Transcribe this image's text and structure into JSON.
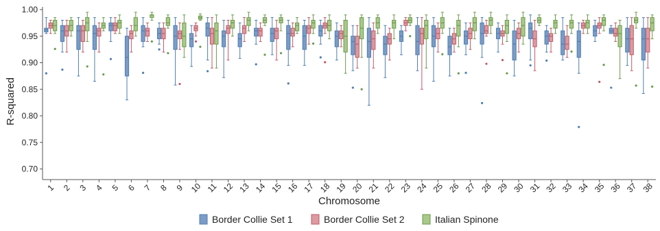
{
  "chart_data": {
    "type": "box",
    "xlabel": "Chromosome",
    "ylabel": "R-squared",
    "ylim": [
      0.68,
      1.0
    ],
    "yticks": [
      "0.70",
      "0.75",
      "0.80",
      "0.85",
      "0.90",
      "0.95",
      "1.00"
    ],
    "categories": [
      "1",
      "2",
      "3",
      "4",
      "5",
      "6",
      "7",
      "8",
      "9",
      "10",
      "11",
      "12",
      "13",
      "14",
      "15",
      "16",
      "17",
      "18",
      "19",
      "20",
      "21",
      "22",
      "23",
      "24",
      "25",
      "26",
      "27",
      "28",
      "29",
      "30",
      "31",
      "32",
      "33",
      "34",
      "35",
      "36",
      "37",
      "38"
    ],
    "legend_position": "bottom",
    "series": [
      {
        "name": "Border Collie Set 1",
        "color": "#4f7eb0",
        "fill": "#7a9cc6",
        "boxes": [
          [
            0.955,
            0.958,
            0.962,
            0.965,
            0.985,
            [
              0.88
            ]
          ],
          [
            0.92,
            0.94,
            0.96,
            0.97,
            0.98,
            [
              0.887
            ]
          ],
          [
            0.875,
            0.925,
            0.96,
            0.97,
            0.985,
            []
          ],
          [
            0.865,
            0.925,
            0.955,
            0.97,
            0.985,
            []
          ],
          [
            0.94,
            0.96,
            0.97,
            0.975,
            0.985,
            [
              0.907
            ]
          ],
          [
            0.83,
            0.875,
            0.91,
            0.95,
            0.965,
            []
          ],
          [
            0.93,
            0.94,
            0.96,
            0.97,
            0.985,
            [
              0.881
            ]
          ],
          [
            0.935,
            0.945,
            0.955,
            0.965,
            0.975,
            [
              0.925
            ]
          ],
          [
            0.858,
            0.925,
            0.95,
            0.97,
            0.985,
            []
          ],
          [
            0.893,
            0.93,
            0.945,
            0.955,
            0.97,
            []
          ],
          [
            0.905,
            0.95,
            0.965,
            0.975,
            0.985,
            [
              0.884
            ]
          ],
          [
            0.872,
            0.93,
            0.95,
            0.96,
            0.98,
            []
          ],
          [
            0.908,
            0.93,
            0.945,
            0.955,
            0.975,
            []
          ],
          [
            0.935,
            0.95,
            0.96,
            0.965,
            0.98,
            [
              0.897
            ]
          ],
          [
            0.915,
            0.94,
            0.955,
            0.965,
            0.985,
            []
          ],
          [
            0.895,
            0.925,
            0.955,
            0.97,
            0.98,
            [
              0.861
            ]
          ],
          [
            0.895,
            0.925,
            0.95,
            0.97,
            0.98,
            []
          ],
          [
            0.935,
            0.95,
            0.96,
            0.97,
            0.98,
            [
              0.91
            ]
          ],
          [
            0.905,
            0.93,
            0.95,
            0.96,
            0.975,
            []
          ],
          [
            0.885,
            0.915,
            0.94,
            0.95,
            0.97,
            [
              0.853
            ]
          ],
          [
            0.82,
            0.91,
            0.94,
            0.965,
            0.985,
            []
          ],
          [
            0.872,
            0.915,
            0.935,
            0.95,
            0.97,
            []
          ],
          [
            0.915,
            0.94,
            0.95,
            0.96,
            0.97,
            []
          ],
          [
            0.885,
            0.915,
            0.94,
            0.97,
            0.985,
            []
          ],
          [
            0.865,
            0.93,
            0.95,
            0.97,
            0.985,
            []
          ],
          [
            0.875,
            0.915,
            0.93,
            0.95,
            0.965,
            []
          ],
          [
            0.915,
            0.935,
            0.95,
            0.96,
            0.975,
            [
              0.881
            ]
          ],
          [
            0.91,
            0.935,
            0.955,
            0.975,
            0.985,
            [
              0.824
            ]
          ],
          [
            0.92,
            0.945,
            0.955,
            0.965,
            0.975,
            []
          ],
          [
            0.875,
            0.905,
            0.935,
            0.96,
            0.98,
            []
          ],
          [
            0.905,
            0.945,
            0.965,
            0.975,
            0.99,
            [
              0.895
            ]
          ],
          [
            0.92,
            0.935,
            0.95,
            0.96,
            0.97,
            [
              0.904
            ]
          ],
          [
            0.905,
            0.915,
            0.935,
            0.96,
            0.985,
            []
          ],
          [
            0.88,
            0.91,
            0.94,
            0.96,
            0.975,
            [
              0.779
            ]
          ],
          [
            0.94,
            0.95,
            0.96,
            0.97,
            0.98,
            []
          ],
          [
            0.955,
            0.955,
            0.96,
            0.965,
            0.97,
            [
              0.853
            ]
          ],
          [
            0.895,
            0.92,
            0.945,
            0.965,
            0.985,
            []
          ],
          [
            0.842,
            0.905,
            0.945,
            0.965,
            0.985,
            []
          ]
        ]
      },
      {
        "name": "Border Collie Set 2",
        "color": "#c05a66",
        "fill": "#dc9aa2",
        "boxes": [
          [
            0.955,
            0.965,
            0.97,
            0.975,
            0.98,
            []
          ],
          [
            0.92,
            0.95,
            0.96,
            0.97,
            0.98,
            []
          ],
          [
            0.92,
            0.94,
            0.96,
            0.97,
            0.98,
            []
          ],
          [
            0.92,
            0.95,
            0.96,
            0.965,
            0.975,
            []
          ],
          [
            0.955,
            0.96,
            0.97,
            0.975,
            0.985,
            []
          ],
          [
            0.92,
            0.945,
            0.955,
            0.96,
            0.97,
            []
          ],
          [
            0.94,
            0.95,
            0.96,
            0.965,
            0.975,
            []
          ],
          [
            0.92,
            0.945,
            0.955,
            0.965,
            0.975,
            []
          ],
          [
            0.925,
            0.945,
            0.955,
            0.96,
            0.975,
            [
              0.86
            ]
          ],
          [
            0.95,
            0.96,
            0.965,
            0.97,
            0.975,
            [
              0.94
            ]
          ],
          [
            0.89,
            0.935,
            0.955,
            0.965,
            0.985,
            []
          ],
          [
            0.905,
            0.955,
            0.965,
            0.97,
            0.98,
            []
          ],
          [
            0.94,
            0.955,
            0.965,
            0.97,
            0.985,
            []
          ],
          [
            0.94,
            0.95,
            0.96,
            0.965,
            0.975,
            []
          ],
          [
            0.905,
            0.945,
            0.96,
            0.965,
            0.98,
            []
          ],
          [
            0.93,
            0.95,
            0.955,
            0.965,
            0.975,
            []
          ],
          [
            0.935,
            0.955,
            0.965,
            0.97,
            0.985,
            []
          ],
          [
            0.955,
            0.965,
            0.97,
            0.975,
            0.985,
            [
              0.901
            ]
          ],
          [
            0.93,
            0.945,
            0.955,
            0.96,
            0.97,
            []
          ],
          [
            0.89,
            0.91,
            0.935,
            0.95,
            0.97,
            []
          ],
          [
            0.89,
            0.925,
            0.945,
            0.96,
            0.975,
            []
          ],
          [
            0.905,
            0.935,
            0.945,
            0.955,
            0.965,
            []
          ],
          [
            0.96,
            0.97,
            0.975,
            0.98,
            0.985,
            []
          ],
          [
            0.85,
            0.935,
            0.955,
            0.965,
            0.985,
            []
          ],
          [
            0.92,
            0.945,
            0.955,
            0.965,
            0.975,
            []
          ],
          [
            0.92,
            0.935,
            0.945,
            0.955,
            0.965,
            []
          ],
          [
            0.925,
            0.945,
            0.955,
            0.965,
            0.975,
            []
          ],
          [
            0.95,
            0.955,
            0.96,
            0.97,
            0.98,
            [
              0.898
            ]
          ],
          [
            0.935,
            0.95,
            0.955,
            0.96,
            0.97,
            [
              0.905
            ]
          ],
          [
            0.92,
            0.945,
            0.955,
            0.965,
            0.975,
            []
          ],
          [
            0.885,
            0.93,
            0.945,
            0.96,
            0.98,
            []
          ],
          [
            0.92,
            0.94,
            0.95,
            0.955,
            0.965,
            []
          ],
          [
            0.91,
            0.925,
            0.935,
            0.95,
            0.97,
            []
          ],
          [
            0.955,
            0.965,
            0.97,
            0.975,
            0.98,
            []
          ],
          [
            0.955,
            0.965,
            0.97,
            0.975,
            0.985,
            [
              0.864
            ]
          ],
          [
            0.94,
            0.95,
            0.955,
            0.965,
            0.975,
            []
          ],
          [
            0.885,
            0.915,
            0.945,
            0.97,
            0.985,
            []
          ],
          [
            0.89,
            0.92,
            0.945,
            0.965,
            0.985,
            []
          ]
        ]
      },
      {
        "name": "Italian Spinone",
        "color": "#6a9a4c",
        "fill": "#a8c98a",
        "boxes": [
          [
            0.955,
            0.96,
            0.97,
            0.98,
            0.985,
            [
              0.926
            ]
          ],
          [
            0.95,
            0.96,
            0.97,
            0.98,
            0.985,
            []
          ],
          [
            0.94,
            0.96,
            0.975,
            0.985,
            0.995,
            [
              0.893
            ]
          ],
          [
            0.96,
            0.965,
            0.97,
            0.975,
            0.985,
            [
              0.878
            ]
          ],
          [
            0.955,
            0.965,
            0.975,
            0.98,
            0.99,
            []
          ],
          [
            0.95,
            0.96,
            0.97,
            0.985,
            0.995,
            []
          ],
          [
            0.98,
            0.985,
            0.99,
            0.99,
            0.995,
            [
              0.94
            ]
          ],
          [
            0.965,
            0.97,
            0.975,
            0.985,
            0.99,
            [
              0.918
            ]
          ],
          [
            0.91,
            0.93,
            0.95,
            0.975,
            0.99,
            []
          ],
          [
            0.98,
            0.982,
            0.985,
            0.988,
            0.992,
            [
              0.93
            ]
          ],
          [
            0.89,
            0.935,
            0.96,
            0.975,
            0.99,
            []
          ],
          [
            0.95,
            0.965,
            0.975,
            0.98,
            0.99,
            []
          ],
          [
            0.96,
            0.97,
            0.98,
            0.985,
            0.995,
            []
          ],
          [
            0.97,
            0.975,
            0.98,
            0.985,
            0.99,
            [
              0.915
            ]
          ],
          [
            0.96,
            0.975,
            0.98,
            0.985,
            0.99,
            [
              0.918
            ]
          ],
          [
            0.955,
            0.96,
            0.97,
            0.975,
            0.985,
            []
          ],
          [
            0.955,
            0.965,
            0.975,
            0.98,
            0.99,
            [
              0.936
            ]
          ],
          [
            0.945,
            0.96,
            0.97,
            0.98,
            0.99,
            []
          ],
          [
            0.88,
            0.92,
            0.95,
            0.98,
            0.99,
            []
          ],
          [
            0.91,
            0.945,
            0.965,
            0.985,
            0.99,
            [
              0.85
            ]
          ],
          [
            0.955,
            0.965,
            0.975,
            0.985,
            0.99,
            []
          ],
          [
            0.945,
            0.965,
            0.975,
            0.98,
            0.99,
            []
          ],
          [
            0.97,
            0.975,
            0.98,
            0.985,
            0.99,
            [
              0.95
            ]
          ],
          [
            0.89,
            0.945,
            0.97,
            0.98,
            0.99,
            []
          ],
          [
            0.955,
            0.965,
            0.975,
            0.985,
            0.995,
            [
              0.916
            ]
          ],
          [
            0.93,
            0.95,
            0.97,
            0.98,
            0.99,
            [
              0.88
            ]
          ],
          [
            0.945,
            0.96,
            0.975,
            0.985,
            0.995,
            []
          ],
          [
            0.955,
            0.97,
            0.98,
            0.985,
            0.995,
            []
          ],
          [
            0.94,
            0.955,
            0.97,
            0.98,
            0.99,
            [
              0.88
            ]
          ],
          [
            0.935,
            0.95,
            0.97,
            0.985,
            0.995,
            []
          ],
          [
            0.97,
            0.975,
            0.98,
            0.985,
            0.99,
            []
          ],
          [
            0.955,
            0.965,
            0.975,
            0.98,
            0.99,
            []
          ],
          [
            0.955,
            0.965,
            0.975,
            0.98,
            0.99,
            [
              0.921
            ]
          ],
          [
            0.955,
            0.965,
            0.975,
            0.98,
            0.99,
            []
          ],
          [
            0.96,
            0.97,
            0.98,
            0.985,
            0.99,
            [
              0.896
            ]
          ],
          [
            0.87,
            0.93,
            0.955,
            0.97,
            0.98,
            []
          ],
          [
            0.965,
            0.975,
            0.98,
            0.985,
            0.995,
            [
              0.857
            ]
          ],
          [
            0.945,
            0.96,
            0.975,
            0.985,
            0.99,
            [
              0.855
            ]
          ]
        ]
      }
    ]
  }
}
